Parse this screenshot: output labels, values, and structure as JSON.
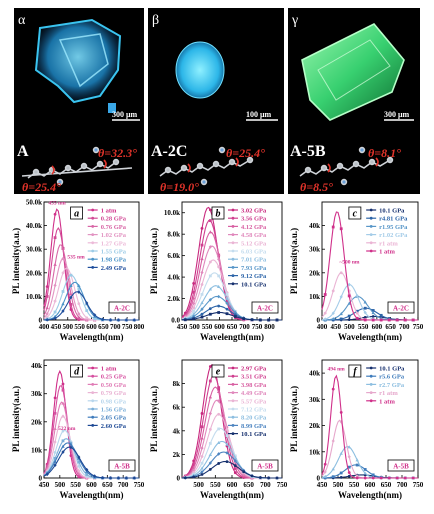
{
  "photos": [
    {
      "greek": "α",
      "sample": "A",
      "scale": "300 μm",
      "theta_top": "θ=32.3°",
      "theta_bottom": "θ=25.4°",
      "crystal_color": "#2aa7e0"
    },
    {
      "greek": "β",
      "sample": "A-2C",
      "scale": "100 μm",
      "theta_top": "θ=25.4°",
      "theta_bottom": "θ=19.0°",
      "crystal_color": "#38c8f0"
    },
    {
      "greek": "γ",
      "sample": "A-5B",
      "scale": "300 μm",
      "theta_top": "θ=8.1°",
      "theta_bottom": "θ=8.5°",
      "crystal_color": "#3ee07a"
    }
  ],
  "chart_data": [
    {
      "type": "line",
      "panel": "a",
      "sample_label": "A-2C",
      "xlabel": "Wavelength(nm)",
      "ylabel": "PL intensity(a.u.)",
      "xlim": [
        400,
        800
      ],
      "xticks": [
        400,
        450,
        500,
        550,
        600,
        650,
        700,
        750,
        800
      ],
      "ylim": [
        0,
        50000
      ],
      "yticks": [
        0,
        10000,
        20000,
        30000,
        40000,
        50000
      ],
      "ytick_labels": [
        "0",
        "10.0k",
        "20.0k",
        "30.0k",
        "40.0k",
        "50.0k"
      ],
      "annotations": [
        {
          "text": "455 nm",
          "x": 455,
          "y": 49000
        },
        {
          "text": "535 nm",
          "x": 535,
          "y": 26000
        }
      ],
      "series": [
        {
          "name": "1 atm",
          "color": "#d0308a",
          "peak": 455,
          "amp": 47000,
          "width": 38
        },
        {
          "name": "0.28 GPa",
          "color": "#d24a96",
          "peak": 460,
          "amp": 39000,
          "width": 40
        },
        {
          "name": "0.76 GPa",
          "color": "#d866a6",
          "peak": 470,
          "amp": 32000,
          "width": 42
        },
        {
          "name": "1.02 GPa",
          "color": "#e294c2",
          "peak": 480,
          "amp": 26000,
          "width": 44
        },
        {
          "name": "1.27 GPa",
          "color": "#ecbad8",
          "peak": 495,
          "amp": 22000,
          "width": 48
        },
        {
          "name": "1.55 GPa",
          "color": "#9ccbe6",
          "peak": 515,
          "amp": 19000,
          "width": 52
        },
        {
          "name": "1.98 GPa",
          "color": "#4c94c8",
          "peak": 530,
          "amp": 16000,
          "width": 54
        },
        {
          "name": "2.49 GPa",
          "color": "#1f4e9c",
          "peak": 540,
          "amp": 12000,
          "width": 56
        }
      ]
    },
    {
      "type": "line",
      "panel": "b",
      "sample_label": "A-2C",
      "xlabel": "Wavelength(nm)",
      "ylabel": "PL intensity(a.u.)",
      "xlim": [
        450,
        850
      ],
      "xticks": [
        450,
        500,
        550,
        600,
        650,
        700,
        750,
        800
      ],
      "ylim": [
        0,
        11000
      ],
      "yticks": [
        0,
        2000,
        4000,
        6000,
        8000,
        10000
      ],
      "ytick_labels": [
        "0.0",
        "2.0k",
        "4.0k",
        "6.0k",
        "8.0k",
        "10.0k"
      ],
      "annotations": [],
      "series": [
        {
          "name": "3.02 GPa",
          "color": "#c8287e",
          "peak": 555,
          "amp": 10500,
          "width": 55
        },
        {
          "name": "3.56 GPa",
          "color": "#d04090",
          "peak": 560,
          "amp": 9300,
          "width": 56
        },
        {
          "name": "4.12 GPa",
          "color": "#d860a2",
          "peak": 565,
          "amp": 8200,
          "width": 58
        },
        {
          "name": "4.58 GPa",
          "color": "#e088bc",
          "peak": 570,
          "amp": 6900,
          "width": 60
        },
        {
          "name": "5.12 GPa",
          "color": "#eab4d4",
          "peak": 575,
          "amp": 5600,
          "width": 62
        },
        {
          "name": "6.03 GPa",
          "color": "#c4dcee",
          "peak": 580,
          "amp": 4400,
          "width": 64
        },
        {
          "name": "7.01 GPa",
          "color": "#8cbee0",
          "peak": 585,
          "amp": 3200,
          "width": 66
        },
        {
          "name": "7.93 GPa",
          "color": "#5896c8",
          "peak": 590,
          "amp": 2200,
          "width": 68
        },
        {
          "name": "9.12 GPa",
          "color": "#2c64a8",
          "peak": 595,
          "amp": 1300,
          "width": 70
        },
        {
          "name": "10.1 GPa",
          "color": "#16306e",
          "peak": 600,
          "amp": 700,
          "width": 72
        }
      ]
    },
    {
      "type": "line",
      "panel": "c",
      "sample_label": "A-2C",
      "xlabel": "Wavelength(nm)",
      "ylabel": "PL intensity(a.u.)",
      "xlim": [
        400,
        750
      ],
      "xticks": [
        400,
        450,
        500,
        550,
        600,
        650,
        700,
        750
      ],
      "ylim": [
        0,
        50000
      ],
      "yticks": [
        0,
        10000,
        20000,
        30000,
        40000
      ],
      "ytick_labels": [
        "0",
        "10k",
        "20k",
        "30k",
        "40k"
      ],
      "annotations": [
        {
          "text": "~500 nm",
          "x": 500,
          "y": 24000
        }
      ],
      "series": [
        {
          "name": "10.1 GPa",
          "color": "#16306e",
          "peak": 590,
          "amp": 1500,
          "width": 60
        },
        {
          "name": "r4.81 GPa",
          "color": "#2c64a8",
          "peak": 560,
          "amp": 5000,
          "width": 58
        },
        {
          "name": "r1.95 GPa",
          "color": "#5896c8",
          "peak": 530,
          "amp": 10000,
          "width": 52
        },
        {
          "name": "r1.02 GPa",
          "color": "#a4cce8",
          "peak": 500,
          "amp": 15000,
          "width": 46
        },
        {
          "name": "r1 atm",
          "color": "#eab4d4",
          "peak": 470,
          "amp": 20000,
          "width": 42
        },
        {
          "name": "1 atm",
          "color": "#d0308a",
          "peak": 455,
          "amp": 46000,
          "width": 36
        }
      ]
    },
    {
      "type": "line",
      "panel": "d",
      "sample_label": "A-5B",
      "xlabel": "Wavelength(nm)",
      "ylabel": "PL intensity(a.u.)",
      "xlim": [
        450,
        750
      ],
      "xticks": [
        450,
        500,
        550,
        600,
        650,
        700,
        750
      ],
      "ylim": [
        0,
        42000
      ],
      "yticks": [
        0,
        10000,
        20000,
        30000,
        40000
      ],
      "ytick_labels": [
        "0",
        "10k",
        "20k",
        "30k",
        "40k"
      ],
      "annotations": [
        {
          "text": "522 nm",
          "x": 522,
          "y": 17000
        }
      ],
      "series": [
        {
          "name": "1 atm",
          "color": "#d0308a",
          "peak": 500,
          "amp": 38000,
          "width": 28
        },
        {
          "name": "0.25 GPa",
          "color": "#d650a0",
          "peak": 503,
          "amp": 33000,
          "width": 30
        },
        {
          "name": "0.50 GPa",
          "color": "#e07cb6",
          "peak": 506,
          "amp": 27000,
          "width": 32
        },
        {
          "name": "0.79 GPa",
          "color": "#eab4d4",
          "peak": 510,
          "amp": 22000,
          "width": 34
        },
        {
          "name": "0.98 GPa",
          "color": "#b8d6ec",
          "peak": 515,
          "amp": 17000,
          "width": 38
        },
        {
          "name": "1.56 GPa",
          "color": "#7aaed8",
          "peak": 520,
          "amp": 14000,
          "width": 42
        },
        {
          "name": "2.05 GPa",
          "color": "#3f7cbc",
          "peak": 525,
          "amp": 12500,
          "width": 46
        },
        {
          "name": "2.60 GPa",
          "color": "#1c4894",
          "peak": 530,
          "amp": 11000,
          "width": 48
        }
      ]
    },
    {
      "type": "line",
      "panel": "e",
      "sample_label": "A-5B",
      "xlabel": "Wavelength(nm)",
      "ylabel": "PL intensity(a.u.)",
      "xlim": [
        450,
        750
      ],
      "xticks": [
        500,
        550,
        600,
        650,
        700,
        750
      ],
      "ylim": [
        0,
        10000
      ],
      "yticks": [
        0,
        2000,
        4000,
        6000,
        8000
      ],
      "ytick_labels": [
        "0",
        "2k",
        "4k",
        "6k",
        "8k"
      ],
      "annotations": [],
      "series": [
        {
          "name": "2.97 GPa",
          "color": "#c8287e",
          "peak": 540,
          "amp": 9600,
          "width": 40
        },
        {
          "name": "3.51 GPa",
          "color": "#d04090",
          "peak": 545,
          "amp": 8700,
          "width": 42
        },
        {
          "name": "3.98 GPa",
          "color": "#d860a2",
          "peak": 550,
          "amp": 7700,
          "width": 44
        },
        {
          "name": "4.49 GPa",
          "color": "#e088bc",
          "peak": 555,
          "amp": 6600,
          "width": 46
        },
        {
          "name": "5.57 GPa",
          "color": "#eab4d4",
          "peak": 560,
          "amp": 5400,
          "width": 48
        },
        {
          "name": "7.12 GPa",
          "color": "#c4dcee",
          "peak": 565,
          "amp": 4200,
          "width": 50
        },
        {
          "name": "8.20 GPa",
          "color": "#8cbee0",
          "peak": 570,
          "amp": 3100,
          "width": 52
        },
        {
          "name": "8.99 GPa",
          "color": "#4c84c0",
          "peak": 575,
          "amp": 2200,
          "width": 54
        },
        {
          "name": "10.1 GPa",
          "color": "#16306e",
          "peak": 580,
          "amp": 1400,
          "width": 56
        }
      ]
    },
    {
      "type": "line",
      "panel": "f",
      "sample_label": "A-5B",
      "xlabel": "Wavelength(nm)",
      "ylabel": "PL intensity(a.u.)",
      "xlim": [
        450,
        750
      ],
      "xticks": [
        450,
        500,
        550,
        600,
        650,
        700,
        750
      ],
      "ylim": [
        0,
        45000
      ],
      "yticks": [
        0,
        10000,
        20000,
        30000,
        40000
      ],
      "ytick_labels": [
        "0",
        "10k",
        "20k",
        "30k",
        "40k"
      ],
      "annotations": [
        {
          "text": "494 nm",
          "x": 494,
          "y": 41000
        }
      ],
      "series": [
        {
          "name": "10.1 GPa",
          "color": "#16306e",
          "peak": 575,
          "amp": 1200,
          "width": 52
        },
        {
          "name": "r5.6 GPa",
          "color": "#3f7cbc",
          "peak": 555,
          "amp": 5000,
          "width": 46
        },
        {
          "name": "r2.7 GPa",
          "color": "#8cbee0",
          "peak": 530,
          "amp": 12000,
          "width": 40
        },
        {
          "name": "r1 atm",
          "color": "#e6a8cc",
          "peak": 505,
          "amp": 22000,
          "width": 30
        },
        {
          "name": "1 atm",
          "color": "#d0308a",
          "peak": 494,
          "amp": 39000,
          "width": 24
        }
      ]
    }
  ]
}
